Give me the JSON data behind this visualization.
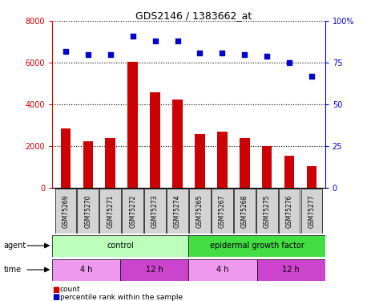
{
  "title": "GDS2146 / 1383662_at",
  "samples": [
    "GSM75269",
    "GSM75270",
    "GSM75271",
    "GSM75272",
    "GSM75273",
    "GSM75274",
    "GSM75265",
    "GSM75267",
    "GSM75268",
    "GSM75275",
    "GSM75276",
    "GSM75277"
  ],
  "bar_values": [
    2850,
    2250,
    2380,
    6050,
    4600,
    4250,
    2600,
    2700,
    2400,
    2000,
    1550,
    1050
  ],
  "dot_values": [
    82,
    80,
    80,
    91,
    88,
    88,
    81,
    81,
    80,
    79,
    75,
    67
  ],
  "bar_color": "#cc0000",
  "dot_color": "#0000cc",
  "ylim_left": [
    0,
    8000
  ],
  "ylim_right": [
    0,
    100
  ],
  "yticks_left": [
    0,
    2000,
    4000,
    6000,
    8000
  ],
  "ytick_labels_left": [
    "0",
    "2000",
    "4000",
    "6000",
    "8000"
  ],
  "yticks_right": [
    0,
    25,
    50,
    75,
    100
  ],
  "ytick_labels_right": [
    "0",
    "25",
    "50",
    "75",
    "100%"
  ],
  "agent_colors": [
    "#bbffbb",
    "#44dd44"
  ],
  "agent_texts": [
    "control",
    "epidermal growth factor"
  ],
  "agent_starts": [
    0,
    6
  ],
  "agent_ends": [
    6,
    12
  ],
  "time_colors": [
    "#ee99ee",
    "#cc44cc",
    "#ee99ee",
    "#cc44cc"
  ],
  "time_texts": [
    "4 h",
    "12 h",
    "4 h",
    "12 h"
  ],
  "time_starts": [
    0,
    3,
    6,
    9
  ],
  "time_ends": [
    3,
    6,
    9,
    12
  ],
  "plot_bg": "#ffffff",
  "fig_bg": "#ffffff",
  "left_color": "#cc0000",
  "right_color": "#0000cc",
  "bar_width": 0.45
}
